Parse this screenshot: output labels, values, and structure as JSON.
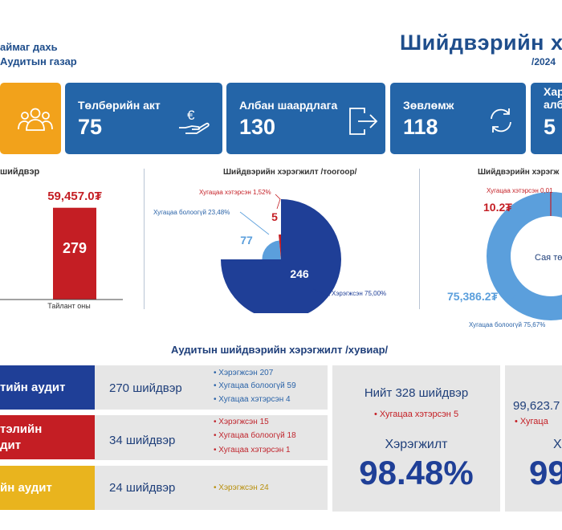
{
  "header": {
    "org_line1": "аймаг дахь",
    "org_line2": "Аудитын газар",
    "title": "Шийдвэрийн х",
    "subtitle": "/2024"
  },
  "cards": [
    {
      "label": "",
      "value": "",
      "icon": "people-icon"
    },
    {
      "label": "Төлбөрийн акт",
      "value": "75",
      "icon": "euro-hand-icon"
    },
    {
      "label": "Албан шаардлага",
      "value": "130",
      "icon": "exit-arrow-icon"
    },
    {
      "label": "Зөвлөмж",
      "value": "118",
      "icon": "refresh-icon"
    },
    {
      "label": "Хар",
      "label2": "алб",
      "value": "5",
      "icon": ""
    }
  ],
  "colors": {
    "navy": "#1f3f97",
    "blue": "#2465a8",
    "light_blue": "#5b9fdc",
    "red": "#c41e24",
    "orange": "#f2a21b",
    "gold": "#e9b41e",
    "gray_box": "#e6e6e6"
  },
  "chart_data": [
    {
      "type": "bar",
      "title": "шийдвэр",
      "categories": [
        "Тайлант оны"
      ],
      "values": [
        279
      ],
      "top_label": "59,457.0₮",
      "data_labels": [
        "279"
      ]
    },
    {
      "type": "pie",
      "title": "Шийдвэрийн хэрэгжилт /тоогоор/",
      "slices": [
        {
          "name": "Хэрэгжсэн 75,00%",
          "value": 246,
          "percent": 75.0,
          "color": "#1f3f97"
        },
        {
          "name": "Хугацаа болоогүй 23,48%",
          "value": 77,
          "percent": 23.48,
          "color": "#5b9fdc"
        },
        {
          "name": "Хугацаа хэтэрсэн 1,52%",
          "value": 5,
          "percent": 1.52,
          "color": "#c41e24"
        }
      ]
    },
    {
      "type": "pie",
      "title": "Шийдвэрийн хэрэгж",
      "center_label": "Сая тө",
      "slices": [
        {
          "name": "Хугацаа болоогүй 75,67%",
          "value": 75386.2,
          "display": "75,386.2₮",
          "percent": 75.67,
          "color": "#5b9fdc"
        },
        {
          "name": "Хугацаа хэтэрсэн 0,01",
          "value": 10.2,
          "display": "10.2₮",
          "percent": 0.01,
          "color": "#c41e24"
        }
      ]
    }
  ],
  "section2_title": "Аудитын шийдвэрийн хэрэгжилт /хувиар/",
  "rows": [
    {
      "label": "тийн аудит",
      "count": "270 шийдвэр",
      "items": [
        "Хэрэгжсэн  207",
        "Хугацаа болоогүй  59",
        "Хугацаа хэтэрсэн  4"
      ]
    },
    {
      "label_line1": "тэлийн",
      "label_line2": "дит",
      "count": "34 шийдвэр",
      "items": [
        "Хэрэгжсэн  15",
        "Хугацаа болоогүй  18",
        "Хугацаа хэтэрсэн  1"
      ]
    },
    {
      "label": "йн аудит",
      "count": "24 шийдвэр",
      "items": [
        "Хэрэгжсэн  24"
      ]
    }
  ],
  "summary1": {
    "total": "Нийт 328 шийдвэр",
    "overdue": "Хугацаа хэтэрсэн  5",
    "caption": "Хэрэгжилт",
    "percent": "98.48%"
  },
  "summary2": {
    "total": "99,623.7",
    "overdue": "Хугаца",
    "caption": "Х",
    "percent": "99"
  }
}
